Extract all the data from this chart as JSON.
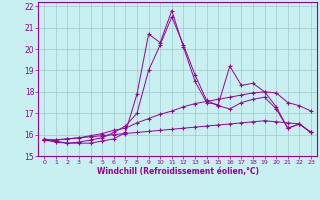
{
  "xlabel": "Windchill (Refroidissement éolien,°C)",
  "bg_color": "#c8f0f0",
  "grid_color": "#a0c8c8",
  "line_color": "#990099",
  "xlim": [
    -0.5,
    23.5
  ],
  "ylim": [
    15,
    22.2
  ],
  "xticks": [
    0,
    1,
    2,
    3,
    4,
    5,
    6,
    7,
    8,
    9,
    10,
    11,
    12,
    13,
    14,
    15,
    16,
    17,
    18,
    19,
    20,
    21,
    22,
    23
  ],
  "yticks": [
    15,
    16,
    17,
    18,
    19,
    20,
    21,
    22
  ],
  "line1_x": [
    0,
    1,
    2,
    3,
    4,
    5,
    6,
    7,
    8,
    9,
    10,
    11,
    12,
    13,
    14,
    15,
    16,
    17,
    18,
    19,
    20,
    21,
    22,
    23
  ],
  "line1_y": [
    15.8,
    15.7,
    15.6,
    15.6,
    15.6,
    15.7,
    15.8,
    16.1,
    17.9,
    20.7,
    20.3,
    21.8,
    20.1,
    18.5,
    17.5,
    17.4,
    19.2,
    18.3,
    18.4,
    18.0,
    17.3,
    16.3,
    16.5,
    16.1
  ],
  "line2_x": [
    0,
    1,
    2,
    3,
    4,
    5,
    6,
    7,
    8,
    9,
    10,
    11,
    12,
    13,
    14,
    15,
    16,
    17,
    18,
    19,
    20,
    21,
    22,
    23
  ],
  "line2_y": [
    15.75,
    15.65,
    15.6,
    15.65,
    15.75,
    15.85,
    16.1,
    16.4,
    17.0,
    19.0,
    20.2,
    21.5,
    20.2,
    18.8,
    17.6,
    17.35,
    17.2,
    17.5,
    17.65,
    17.75,
    17.2,
    16.3,
    16.5,
    16.1
  ],
  "line3_x": [
    0,
    1,
    2,
    3,
    4,
    5,
    6,
    7,
    8,
    9,
    10,
    11,
    12,
    13,
    14,
    15,
    16,
    17,
    18,
    19,
    20,
    21,
    22,
    23
  ],
  "line3_y": [
    15.75,
    15.75,
    15.8,
    15.85,
    15.95,
    16.05,
    16.2,
    16.3,
    16.55,
    16.75,
    16.95,
    17.1,
    17.3,
    17.45,
    17.55,
    17.65,
    17.75,
    17.85,
    17.95,
    18.0,
    17.95,
    17.5,
    17.35,
    17.1
  ],
  "line4_x": [
    0,
    1,
    2,
    3,
    4,
    5,
    6,
    7,
    8,
    9,
    10,
    11,
    12,
    13,
    14,
    15,
    16,
    17,
    18,
    19,
    20,
    21,
    22,
    23
  ],
  "line4_y": [
    15.75,
    15.75,
    15.8,
    15.85,
    15.9,
    15.95,
    16.0,
    16.05,
    16.1,
    16.15,
    16.2,
    16.25,
    16.3,
    16.35,
    16.4,
    16.45,
    16.5,
    16.55,
    16.6,
    16.65,
    16.6,
    16.55,
    16.5,
    16.1
  ]
}
